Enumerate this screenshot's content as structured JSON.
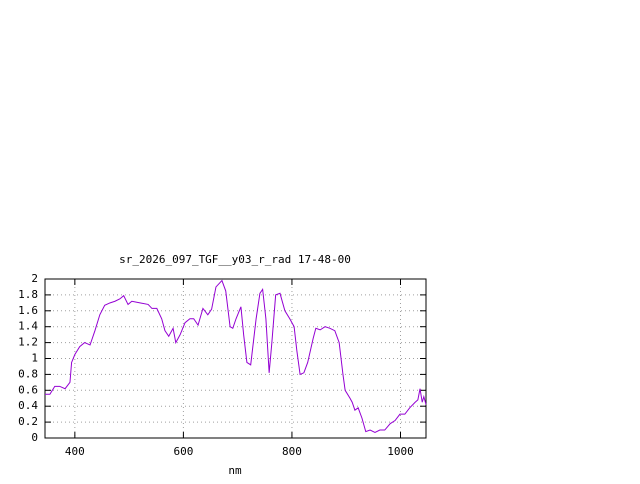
{
  "chart_data": {
    "type": "line",
    "title": "sr_2026_097_TGF__y03_r_rad 17-48-00",
    "x_label": "nm",
    "xlim": [
      345,
      1047
    ],
    "xticks": [
      400,
      600,
      800,
      1000
    ],
    "ylim": [
      0,
      2
    ],
    "yticks": [
      0,
      0.2,
      0.4,
      0.6,
      0.8,
      1,
      1.2,
      1.4,
      1.6,
      1.8,
      2
    ],
    "grid": true,
    "x": [
      345,
      354,
      363,
      372,
      382,
      391,
      394,
      400,
      409,
      418,
      428,
      437,
      446,
      455,
      465,
      474,
      483,
      490,
      498,
      505,
      520,
      535,
      542,
      551,
      560,
      566,
      573,
      581,
      586,
      594,
      603,
      612,
      619,
      627,
      636,
      645,
      652,
      660,
      671,
      678,
      686,
      691,
      697,
      706,
      711,
      717,
      724,
      734,
      741,
      746,
      752,
      758,
      763,
      770,
      778,
      787,
      796,
      804,
      809,
      815,
      822,
      829,
      839,
      844,
      852,
      861,
      870,
      879,
      887,
      894,
      898,
      907,
      911,
      916,
      922,
      929,
      936,
      944,
      953,
      962,
      971,
      981,
      990,
      999,
      1008,
      1017,
      1027,
      1032,
      1036,
      1040,
      1043,
      1047
    ],
    "series": [
      {
        "color": "#9400d3",
        "values": [
          0.55,
          0.55,
          0.65,
          0.65,
          0.62,
          0.7,
          0.95,
          1.05,
          1.15,
          1.2,
          1.17,
          1.35,
          1.55,
          1.67,
          1.7,
          1.72,
          1.75,
          1.79,
          1.68,
          1.72,
          1.7,
          1.68,
          1.63,
          1.63,
          1.5,
          1.35,
          1.28,
          1.38,
          1.2,
          1.3,
          1.45,
          1.5,
          1.5,
          1.42,
          1.63,
          1.55,
          1.62,
          1.9,
          1.98,
          1.85,
          1.4,
          1.38,
          1.5,
          1.65,
          1.3,
          0.95,
          0.92,
          1.5,
          1.82,
          1.87,
          1.5,
          0.82,
          1.2,
          1.8,
          1.82,
          1.6,
          1.5,
          1.4,
          1.1,
          0.8,
          0.82,
          0.95,
          1.25,
          1.38,
          1.36,
          1.4,
          1.38,
          1.35,
          1.2,
          0.8,
          0.6,
          0.5,
          0.45,
          0.35,
          0.38,
          0.25,
          0.08,
          0.1,
          0.07,
          0.1,
          0.1,
          0.18,
          0.22,
          0.3,
          0.3,
          0.38,
          0.45,
          0.48,
          0.62,
          0.45,
          0.52,
          0.42
        ]
      }
    ]
  }
}
